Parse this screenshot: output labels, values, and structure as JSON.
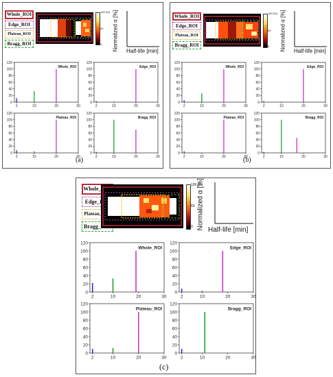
{
  "roi_labels": [
    "Whole_ROI",
    "Edge_ROI",
    "Plateau_ROI",
    "Bragg_ROI"
  ],
  "axis_diagram": {
    "ylabel": "Normalized α [%]",
    "xlabel": "Half-life [min]"
  },
  "colorbar": {
    "top": "100 [%]",
    "mid": "50",
    "bottom": "0"
  },
  "panels": [
    {
      "label": "(a)"
    },
    {
      "label": "(b)"
    },
    {
      "label": "(c)"
    }
  ],
  "colors": {
    "short": "#2b2bd6",
    "medium": "#1f9e35",
    "long": "#cc33cc"
  },
  "chart_data": [
    {
      "panel": "(a)",
      "title": "Whole_ROI",
      "type": "bar",
      "xlim": [
        1,
        30
      ],
      "ylim": [
        0,
        120
      ],
      "xticks": [
        2,
        10,
        20,
        30
      ],
      "yticks": [
        0,
        20,
        40,
        60,
        80,
        100,
        120
      ],
      "x": [
        2,
        10,
        20
      ],
      "values": [
        12,
        33,
        100
      ]
    },
    {
      "panel": "(a)",
      "title": "Edge_ROI",
      "type": "bar",
      "xlim": [
        1,
        30
      ],
      "ylim": [
        0,
        120
      ],
      "xticks": [
        2,
        10,
        20,
        30
      ],
      "yticks": [
        0,
        20,
        40,
        60,
        80,
        100,
        120
      ],
      "x": [
        2,
        20
      ],
      "values": [
        3,
        100
      ]
    },
    {
      "panel": "(a)",
      "title": "Plateau_ROI",
      "type": "bar",
      "xlim": [
        1,
        30
      ],
      "ylim": [
        0,
        120
      ],
      "xticks": [
        2,
        10,
        20,
        30
      ],
      "yticks": [
        0,
        20,
        40,
        60,
        80,
        100,
        120
      ],
      "x": [
        2,
        10,
        20
      ],
      "values": [
        8,
        5,
        100
      ]
    },
    {
      "panel": "(a)",
      "title": "Bragg_ROI",
      "type": "bar",
      "xlim": [
        1,
        30
      ],
      "ylim": [
        0,
        120
      ],
      "xticks": [
        2,
        10,
        20,
        30
      ],
      "yticks": [
        0,
        20,
        40,
        60,
        80,
        100,
        120
      ],
      "x": [
        2,
        10,
        20
      ],
      "values": [
        3,
        100,
        70
      ]
    },
    {
      "panel": "(b)",
      "title": "Whole_ROI",
      "type": "bar",
      "xlim": [
        1,
        30
      ],
      "ylim": [
        0,
        120
      ],
      "xticks": [
        2,
        10,
        20,
        30
      ],
      "yticks": [
        0,
        20,
        40,
        60,
        80,
        100,
        120
      ],
      "x": [
        2,
        10,
        20
      ],
      "values": [
        6,
        27,
        100
      ]
    },
    {
      "panel": "(b)",
      "title": "Edge_ROI",
      "type": "bar",
      "xlim": [
        1,
        30
      ],
      "ylim": [
        0,
        120
      ],
      "xticks": [
        2,
        10,
        20,
        30
      ],
      "yticks": [
        0,
        20,
        40,
        60,
        80,
        100,
        120
      ],
      "x": [
        2,
        20
      ],
      "values": [
        3,
        100
      ]
    },
    {
      "panel": "(b)",
      "title": "Plateau_ROI",
      "type": "bar",
      "xlim": [
        1,
        30
      ],
      "ylim": [
        0,
        120
      ],
      "xticks": [
        2,
        10,
        20,
        30
      ],
      "yticks": [
        0,
        20,
        40,
        60,
        80,
        100,
        120
      ],
      "x": [
        2,
        20
      ],
      "values": [
        5,
        100
      ]
    },
    {
      "panel": "(b)",
      "title": "Bragg_ROI",
      "type": "bar",
      "xlim": [
        1,
        30
      ],
      "ylim": [
        0,
        120
      ],
      "xticks": [
        2,
        10,
        20,
        30
      ],
      "yticks": [
        0,
        20,
        40,
        60,
        80,
        100,
        120
      ],
      "x": [
        2,
        10,
        17
      ],
      "values": [
        3,
        100,
        45
      ]
    },
    {
      "panel": "(c)",
      "title": "Whole_ROI",
      "type": "bar",
      "xlim": [
        1,
        30
      ],
      "ylim": [
        0,
        120
      ],
      "xticks": [
        2,
        10,
        20,
        30
      ],
      "yticks": [
        0,
        20,
        40,
        60,
        80,
        100,
        120
      ],
      "x": [
        2,
        10,
        19
      ],
      "values": [
        22,
        33,
        100
      ]
    },
    {
      "panel": "(c)",
      "title": "Edge_ROI",
      "type": "bar",
      "xlim": [
        1,
        30
      ],
      "ylim": [
        0,
        120
      ],
      "xticks": [
        2,
        10,
        20,
        30
      ],
      "yticks": [
        0,
        20,
        40,
        60,
        80,
        100,
        120
      ],
      "x": [
        2,
        10,
        18
      ],
      "values": [
        8,
        3,
        100
      ]
    },
    {
      "panel": "(c)",
      "title": "Plateau_ROI",
      "type": "bar",
      "xlim": [
        1,
        30
      ],
      "ylim": [
        0,
        120
      ],
      "xticks": [
        2,
        10,
        20,
        30
      ],
      "yticks": [
        0,
        20,
        40,
        60,
        80,
        100,
        120
      ],
      "x": [
        2,
        10,
        20
      ],
      "values": [
        10,
        12,
        100
      ]
    },
    {
      "panel": "(c)",
      "title": "Bragg_ROI",
      "type": "bar",
      "xlim": [
        1,
        30
      ],
      "ylim": [
        0,
        120
      ],
      "xticks": [
        2,
        10,
        20,
        30
      ],
      "yticks": [
        0,
        20,
        40,
        60,
        80,
        100,
        120
      ],
      "x": [
        2,
        11
      ],
      "values": [
        10,
        100
      ]
    }
  ]
}
